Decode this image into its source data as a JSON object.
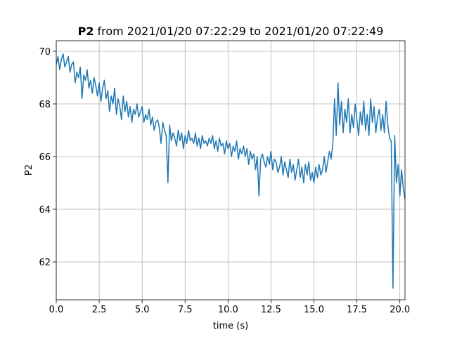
{
  "chart_data": {
    "type": "line",
    "title": [
      "P2",
      "from 2021/01/20 07:22:29 to 2021/01/20 07:22:49"
    ],
    "xlabel": "time (s)",
    "ylabel": "P2",
    "xlim": [
      0,
      20.3
    ],
    "ylim": [
      60.56,
      70.4
    ],
    "xticks": [
      {
        "value": 0,
        "label": "0.0"
      },
      {
        "value": 2.5,
        "label": "2.5"
      },
      {
        "value": 5,
        "label": "5.0"
      },
      {
        "value": 7.5,
        "label": "7.5"
      },
      {
        "value": 10,
        "label": "10.0"
      },
      {
        "value": 12.5,
        "label": "12.5"
      },
      {
        "value": 15,
        "label": "15.0"
      },
      {
        "value": 17.5,
        "label": "17.5"
      },
      {
        "value": 20,
        "label": "20.0"
      }
    ],
    "yticks": [
      62,
      64,
      66,
      68,
      70
    ],
    "grid": true,
    "x": [
      0,
      0.1,
      0.2,
      0.3,
      0.4,
      0.5,
      0.6,
      0.7,
      0.8,
      0.9,
      1,
      1.1,
      1.2,
      1.3,
      1.4,
      1.5,
      1.6,
      1.7,
      1.8,
      1.9,
      2,
      2.1,
      2.2,
      2.3,
      2.4,
      2.5,
      2.6,
      2.7,
      2.8,
      2.9,
      3,
      3.1,
      3.2,
      3.3,
      3.4,
      3.5,
      3.6,
      3.7,
      3.8,
      3.9,
      4,
      4.1,
      4.2,
      4.3,
      4.4,
      4.5,
      4.6,
      4.7,
      4.8,
      4.9,
      5,
      5.1,
      5.2,
      5.3,
      5.4,
      5.5,
      5.6,
      5.7,
      5.8,
      5.9,
      6,
      6.1,
      6.2,
      6.3,
      6.4,
      6.5,
      6.6,
      6.7,
      6.8,
      6.9,
      7,
      7.1,
      7.2,
      7.3,
      7.4,
      7.5,
      7.6,
      7.7,
      7.8,
      7.9,
      8,
      8.1,
      8.2,
      8.3,
      8.4,
      8.5,
      8.6,
      8.7,
      8.8,
      8.9,
      9,
      9.1,
      9.2,
      9.3,
      9.4,
      9.5,
      9.6,
      9.7,
      9.8,
      9.9,
      10,
      10.1,
      10.2,
      10.3,
      10.4,
      10.5,
      10.6,
      10.7,
      10.8,
      10.9,
      11,
      11.1,
      11.2,
      11.3,
      11.4,
      11.5,
      11.6,
      11.7,
      11.8,
      11.9,
      12,
      12.1,
      12.2,
      12.3,
      12.4,
      12.5,
      12.6,
      12.7,
      12.8,
      12.9,
      13,
      13.1,
      13.2,
      13.3,
      13.4,
      13.5,
      13.6,
      13.7,
      13.8,
      13.9,
      14,
      14.1,
      14.2,
      14.3,
      14.4,
      14.5,
      14.6,
      14.7,
      14.8,
      14.9,
      15,
      15.1,
      15.2,
      15.3,
      15.4,
      15.5,
      15.6,
      15.7,
      15.8,
      15.9,
      16,
      16.1,
      16.2,
      16.3,
      16.4,
      16.5,
      16.6,
      16.7,
      16.8,
      16.9,
      17,
      17.1,
      17.2,
      17.3,
      17.4,
      17.5,
      17.6,
      17.7,
      17.8,
      17.9,
      18,
      18.1,
      18.2,
      18.3,
      18.4,
      18.5,
      18.6,
      18.7,
      18.8,
      18.9,
      19,
      19.1,
      19.2,
      19.3,
      19.4,
      19.5,
      19.6,
      19.7,
      19.8,
      19.9,
      20,
      20.1,
      20.2,
      20.3
    ],
    "series": [
      {
        "color": "#1f77b4",
        "values": [
          69.5,
          69.8,
          69.3,
          69.7,
          69.9,
          69.4,
          69.6,
          69.8,
          69.2,
          69.5,
          69.6,
          68.8,
          69.2,
          69.0,
          69.4,
          68.2,
          69.1,
          68.9,
          69.3,
          68.6,
          68.9,
          68.4,
          69.0,
          68.7,
          68.3,
          68.8,
          68.1,
          68.6,
          68.9,
          68.2,
          68.5,
          67.7,
          68.3,
          68.0,
          68.6,
          67.6,
          68.2,
          67.9,
          67.4,
          68.3,
          67.7,
          68.1,
          67.5,
          67.9,
          67.3,
          67.8,
          67.6,
          68.0,
          67.5,
          67.7,
          67.9,
          67.3,
          67.6,
          67.4,
          67.8,
          67.2,
          67.5,
          67.0,
          67.3,
          67.4,
          67.1,
          66.5,
          67.3,
          67.0,
          66.8,
          65.0,
          67.2,
          66.6,
          66.9,
          66.7,
          66.4,
          67.0,
          66.6,
          66.9,
          66.3,
          66.8,
          66.5,
          67.0,
          66.6,
          66.7,
          66.5,
          66.9,
          66.4,
          66.7,
          66.3,
          66.8,
          66.5,
          66.6,
          66.4,
          66.7,
          66.5,
          66.8,
          66.3,
          66.6,
          66.2,
          66.7,
          66.4,
          66.5,
          66.1,
          66.6,
          66.3,
          66.5,
          66.0,
          66.4,
          66.2,
          66.6,
          65.9,
          66.3,
          66.1,
          66.4,
          66.0,
          66.3,
          65.7,
          66.2,
          65.9,
          66.1,
          65.5,
          66.0,
          64.5,
          65.9,
          66.1,
          65.8,
          65.6,
          66.0,
          65.7,
          66.2,
          65.5,
          65.9,
          65.8,
          65.4,
          65.6,
          66.0,
          65.3,
          65.8,
          65.5,
          65.2,
          65.9,
          65.4,
          65.7,
          65.1,
          65.5,
          65.9,
          65.2,
          65.6,
          65.0,
          65.7,
          65.3,
          65.8,
          65.1,
          65.4,
          65.0,
          65.6,
          65.2,
          65.7,
          65.3,
          65.5,
          66.0,
          65.4,
          65.8,
          66.2,
          65.9,
          66.5,
          68.2,
          66.8,
          68.8,
          67.2,
          68.1,
          66.9,
          67.8,
          67.3,
          68.2,
          66.9,
          67.6,
          67.1,
          68.0,
          67.4,
          66.8,
          67.7,
          67.2,
          68.1,
          67.0,
          67.6,
          66.8,
          68.2,
          67.3,
          67.9,
          66.9,
          67.5,
          67.8,
          67.0,
          67.6,
          66.9,
          68.1,
          67.2,
          66.7,
          66.6,
          61.0,
          66.8,
          65.0,
          65.7,
          64.5,
          65.5,
          64.8,
          64.4
        ]
      }
    ]
  }
}
